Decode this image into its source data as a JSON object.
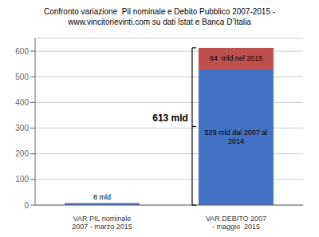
{
  "chart_data": {
    "type": "bar",
    "title": "Confronto variazione  Pil nominale e Debito Pubblico 2007-2015 -\nwww.vincitorievinti.com su dati Istat e Banca D’Italia",
    "categories": [
      "VAR PIL nominale 2007 - marzo 2015",
      "VAR DEBITO 2007 - maggio  2015"
    ],
    "stacked": true,
    "series": [
      {
        "color": "#4472C4",
        "values": [
          8,
          529
        ],
        "value_labels": [
          "8 mld",
          "529 mld dal 2007 al\n2014"
        ]
      },
      {
        "color": "#C0504D",
        "values": [
          null,
          84
        ],
        "value_labels": [
          null,
          "84  mld nel 2015"
        ]
      }
    ],
    "annotations": [
      "613 mld"
    ],
    "ylim": [
      0,
      650
    ],
    "yticks": [
      0,
      100,
      200,
      300,
      400,
      500,
      600
    ],
    "grid": true
  }
}
